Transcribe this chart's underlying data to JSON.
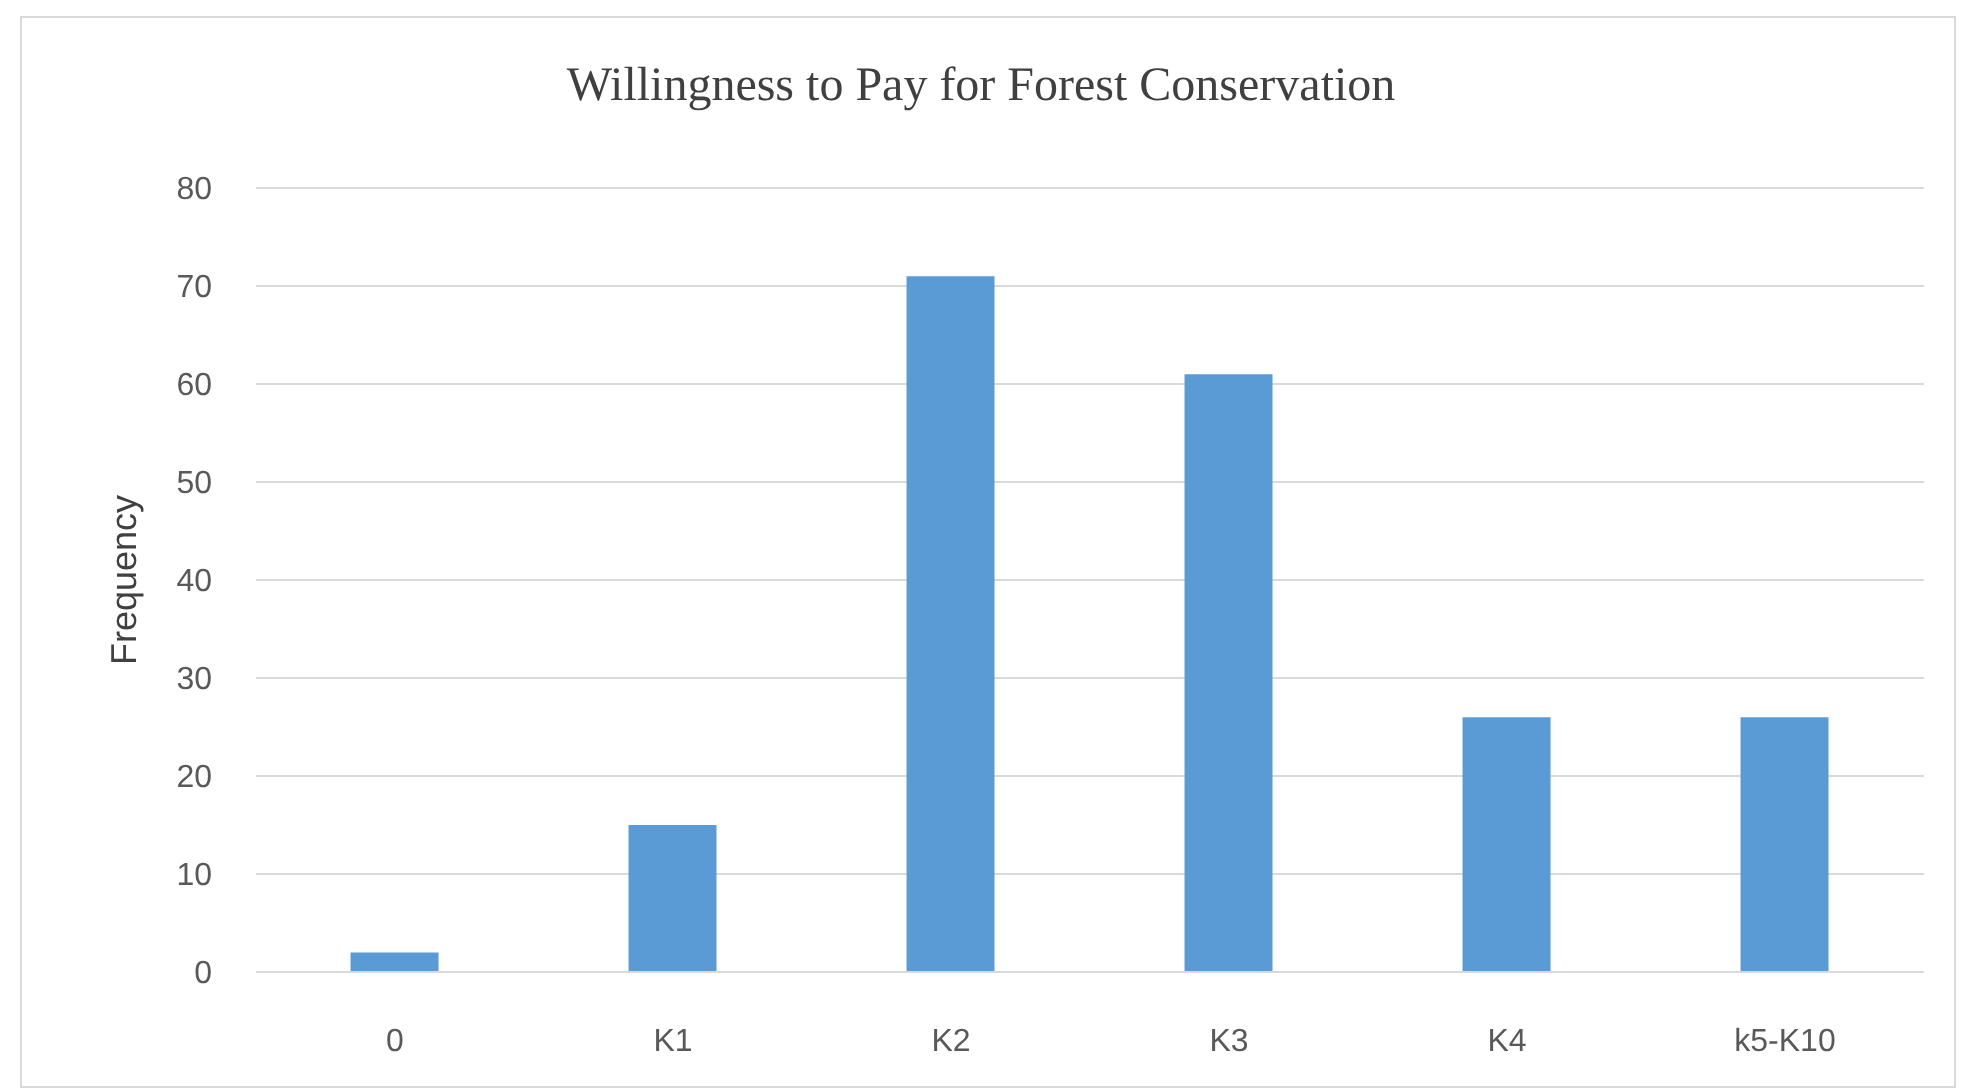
{
  "chart_data": {
    "type": "bar",
    "title": "Willingness to Pay for Forest Conservation",
    "ylabel": "Frequency",
    "categories": [
      "0",
      "K1",
      "K2",
      "K3",
      "K4",
      "k5-K10"
    ],
    "values": [
      2,
      15,
      71,
      61,
      26,
      26
    ],
    "color": "#5b9bd5",
    "ylim": [
      0,
      80
    ],
    "yticks": [
      0,
      10,
      20,
      30,
      40,
      50,
      60,
      70,
      80
    ],
    "grid": "y"
  }
}
